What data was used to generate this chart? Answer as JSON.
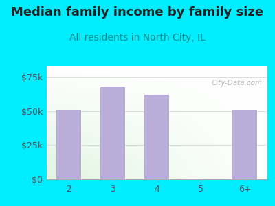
{
  "title": "Median family income by family size",
  "subtitle": "All residents in North City, IL",
  "categories": [
    "2",
    "3",
    "4",
    "5",
    "6+"
  ],
  "values": [
    51000,
    68000,
    62000,
    0,
    51000
  ],
  "bar_color": "#b8aed8",
  "background_outer": "#00eeff",
  "yticks": [
    0,
    25000,
    50000,
    75000
  ],
  "ytick_labels": [
    "$0",
    "$25k",
    "$50k",
    "$75k"
  ],
  "ylim": [
    0,
    83000
  ],
  "title_fontsize": 13,
  "subtitle_fontsize": 10,
  "title_color": "#222222",
  "subtitle_color": "#008888",
  "tick_color": "#555555",
  "watermark_text": "City-Data.com",
  "watermark_color": "#aaaaaa",
  "grid_color": "#dddddd"
}
